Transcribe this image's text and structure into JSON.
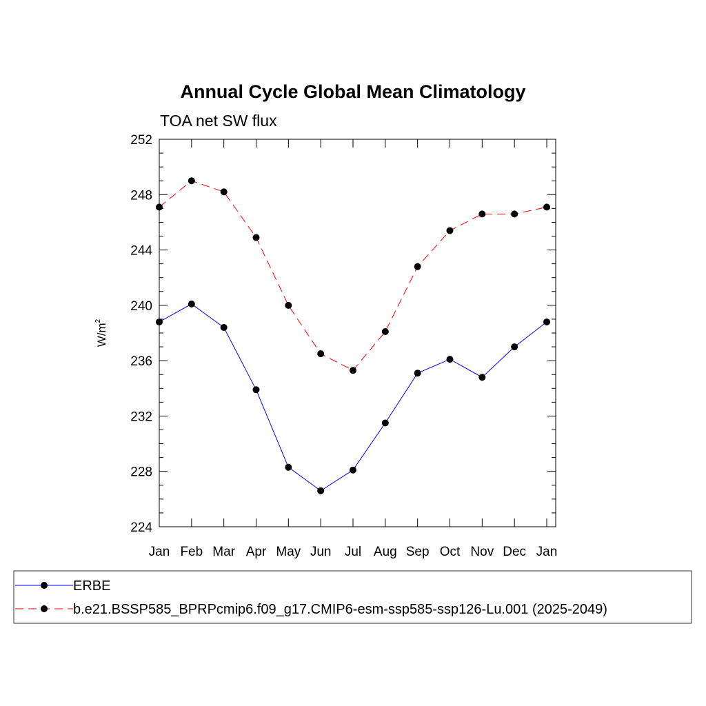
{
  "chart_data": {
    "type": "line",
    "title": "Annual Cycle Global Mean Climatology",
    "subtitle": "TOA net SW flux",
    "ylabel": "W/m",
    "ylabel_superscript": "2",
    "xlabel": "",
    "ylim": [
      224,
      252
    ],
    "yticks": [
      "224",
      "228",
      "232",
      "236",
      "240",
      "244",
      "248",
      "252"
    ],
    "categories": [
      "Jan",
      "Feb",
      "Mar",
      "Apr",
      "May",
      "Jun",
      "Jul",
      "Aug",
      "Sep",
      "Oct",
      "Nov",
      "Dec",
      "Jan"
    ],
    "grid": false,
    "legend_position": "bottom",
    "series": [
      {
        "name": "ERBE",
        "color": "#0000ff",
        "dashed": false,
        "values": [
          238.8,
          240.1,
          238.4,
          233.9,
          228.3,
          226.6,
          228.1,
          231.5,
          235.1,
          236.1,
          234.8,
          237.0,
          238.8
        ]
      },
      {
        "name": "b.e21.BSSP585_BPRPcmip6.f09_g17.CMIP6-esm-ssp585-ssp126-Lu.001 (2025-2049)",
        "color": "#ff0000",
        "dashed": true,
        "values": [
          247.1,
          249.0,
          248.2,
          244.9,
          240.0,
          236.5,
          235.3,
          238.1,
          242.8,
          245.4,
          246.6,
          246.6,
          247.1
        ]
      }
    ]
  }
}
